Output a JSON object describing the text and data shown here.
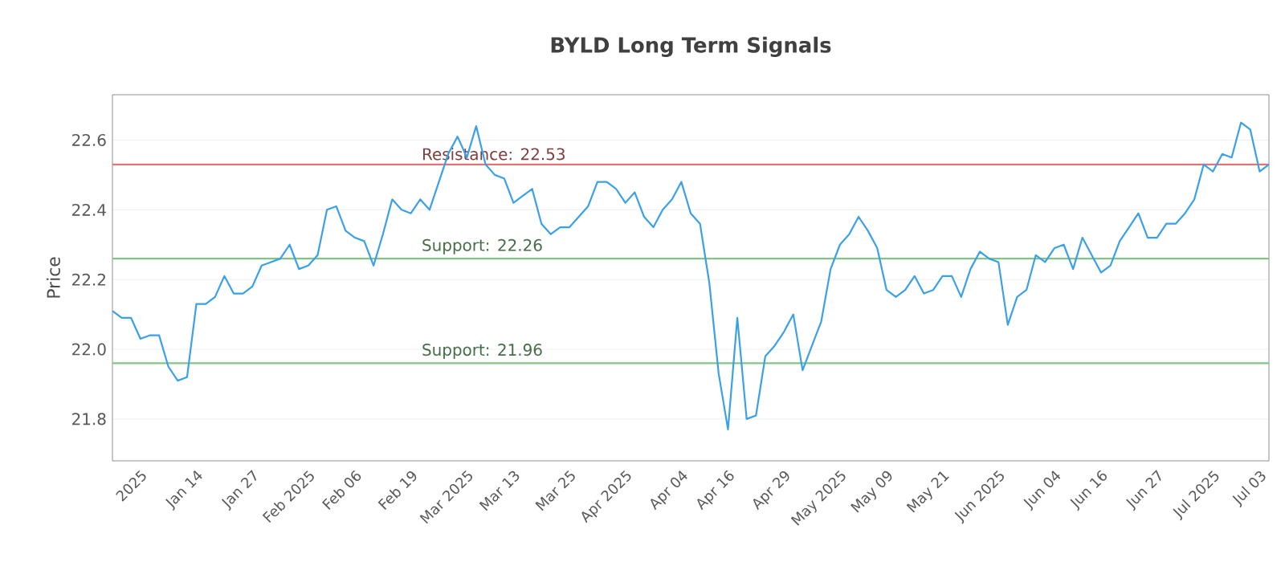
{
  "chart_data": {
    "type": "line",
    "title": "BYLD Long Term Signals",
    "ylabel": "Price",
    "categories": [
      null,
      null,
      null,
      "2025",
      null,
      null,
      null,
      null,
      null,
      "Jan 14",
      null,
      null,
      null,
      null,
      null,
      "Jan 27",
      null,
      null,
      null,
      null,
      null,
      "Feb 2025",
      null,
      null,
      null,
      null,
      "Feb 06",
      null,
      null,
      null,
      null,
      null,
      "Feb 19",
      null,
      null,
      null,
      null,
      null,
      "Mar 2025",
      null,
      null,
      null,
      null,
      "Mar 13",
      null,
      null,
      null,
      null,
      null,
      "Mar 25",
      null,
      null,
      null,
      null,
      null,
      "Apr 2025",
      null,
      null,
      null,
      null,
      null,
      "Apr 04",
      null,
      null,
      null,
      null,
      "Apr 16",
      null,
      null,
      null,
      null,
      null,
      "Apr 29",
      null,
      null,
      null,
      null,
      null,
      "May 2025",
      null,
      null,
      null,
      null,
      "May 09",
      null,
      null,
      null,
      null,
      null,
      "May 21",
      null,
      null,
      null,
      null,
      null,
      "Jun 2025",
      null,
      null,
      null,
      null,
      null,
      "Jun 04",
      null,
      null,
      null,
      null,
      "Jun 16",
      null,
      null,
      null,
      null,
      null,
      "Jun 27",
      null,
      null,
      null,
      null,
      null,
      "Jul 2025",
      null,
      null,
      null,
      null,
      "Jul 03",
      null
    ],
    "series": [
      {
        "color": "#3aa0e8",
        "values": [
          22.11,
          22.09,
          22.09,
          22.03,
          22.04,
          22.04,
          21.95,
          21.91,
          21.92,
          22.13,
          22.13,
          22.15,
          22.21,
          22.16,
          22.16,
          22.18,
          22.24,
          22.25,
          22.26,
          22.3,
          22.23,
          22.24,
          22.27,
          22.4,
          22.41,
          22.34,
          22.32,
          22.31,
          22.24,
          22.33,
          22.43,
          22.4,
          22.39,
          22.43,
          22.4,
          22.48,
          22.56,
          22.61,
          22.55,
          22.64,
          22.53,
          22.5,
          22.49,
          22.42,
          22.44,
          22.46,
          22.36,
          22.33,
          22.35,
          22.35,
          22.38,
          22.41,
          22.48,
          22.48,
          22.46,
          22.42,
          22.45,
          22.38,
          22.35,
          22.4,
          22.43,
          22.48,
          22.39,
          22.36,
          22.19,
          21.93,
          21.77,
          22.09,
          21.8,
          21.81,
          21.98,
          22.01,
          22.05,
          22.1,
          21.94,
          22.01,
          22.08,
          22.23,
          22.3,
          22.33,
          22.38,
          22.34,
          22.29,
          22.17,
          22.15,
          22.17,
          22.21,
          22.16,
          22.17,
          22.21,
          22.21,
          22.15,
          22.23,
          22.28,
          22.26,
          22.25,
          22.07,
          22.15,
          22.17,
          22.27,
          22.25,
          22.29,
          22.3,
          22.23,
          22.32,
          22.27,
          22.22,
          22.24,
          22.31,
          22.35,
          22.39,
          22.32,
          22.32,
          22.36,
          22.36,
          22.39,
          22.43,
          22.53,
          22.51,
          22.56,
          22.55,
          22.65,
          22.63,
          22.51,
          22.53
        ]
      }
    ],
    "ylim": [
      21.68,
      22.73
    ],
    "yticks": [
      21.8,
      {
        "value": 22.0,
        "label": "22.0"
      },
      22.2,
      22.4,
      22.6
    ],
    "grid": "y",
    "legend": false,
    "marker": "none",
    "line_style": "solid",
    "ref_lines": [
      {
        "axis": "y",
        "value": 22.53,
        "label": "Resistance: 22.53",
        "color": "#e57373"
      },
      {
        "axis": "y",
        "value": 22.26,
        "label": "Support: 22.26",
        "color": "#81c784"
      },
      {
        "axis": "y",
        "value": 21.96,
        "label": "Support: 21.96",
        "color": "#81c784"
      }
    ]
  }
}
